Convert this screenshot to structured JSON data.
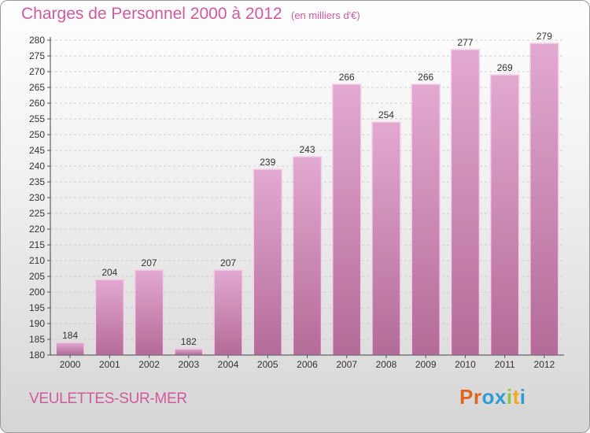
{
  "header": {
    "title": "Charges de Personnel 2000 à 2012",
    "subtitle": "(en milliers d'€)"
  },
  "footer": {
    "commune": "VEULETTES-SUR-MER",
    "logo_letters": [
      "P",
      "r",
      "o",
      "x",
      "i",
      "t",
      "i"
    ]
  },
  "colors": {
    "title": "#d05a9e",
    "bar_top": "#e2a9d1",
    "bar_bottom": "#b46b98",
    "gridline": "#cfcfcf",
    "logo": [
      "#e1641e",
      "#e1641e",
      "#2e9bd6",
      "#2e9bd6",
      "#8cc63f",
      "#f5a623",
      "#2e9bd6"
    ]
  },
  "chart_data": {
    "type": "bar",
    "title": "Charges de Personnel 2000 à 2012",
    "subtitle": "(en milliers d'€)",
    "categories": [
      "2000",
      "2001",
      "2002",
      "2003",
      "2004",
      "2005",
      "2006",
      "2007",
      "2008",
      "2009",
      "2010",
      "2011",
      "2012"
    ],
    "values": [
      184,
      204,
      207,
      182,
      207,
      239,
      243,
      266,
      254,
      266,
      277,
      269,
      279
    ],
    "ylim": [
      180,
      280
    ],
    "ytick_step": 5,
    "grid": true
  }
}
